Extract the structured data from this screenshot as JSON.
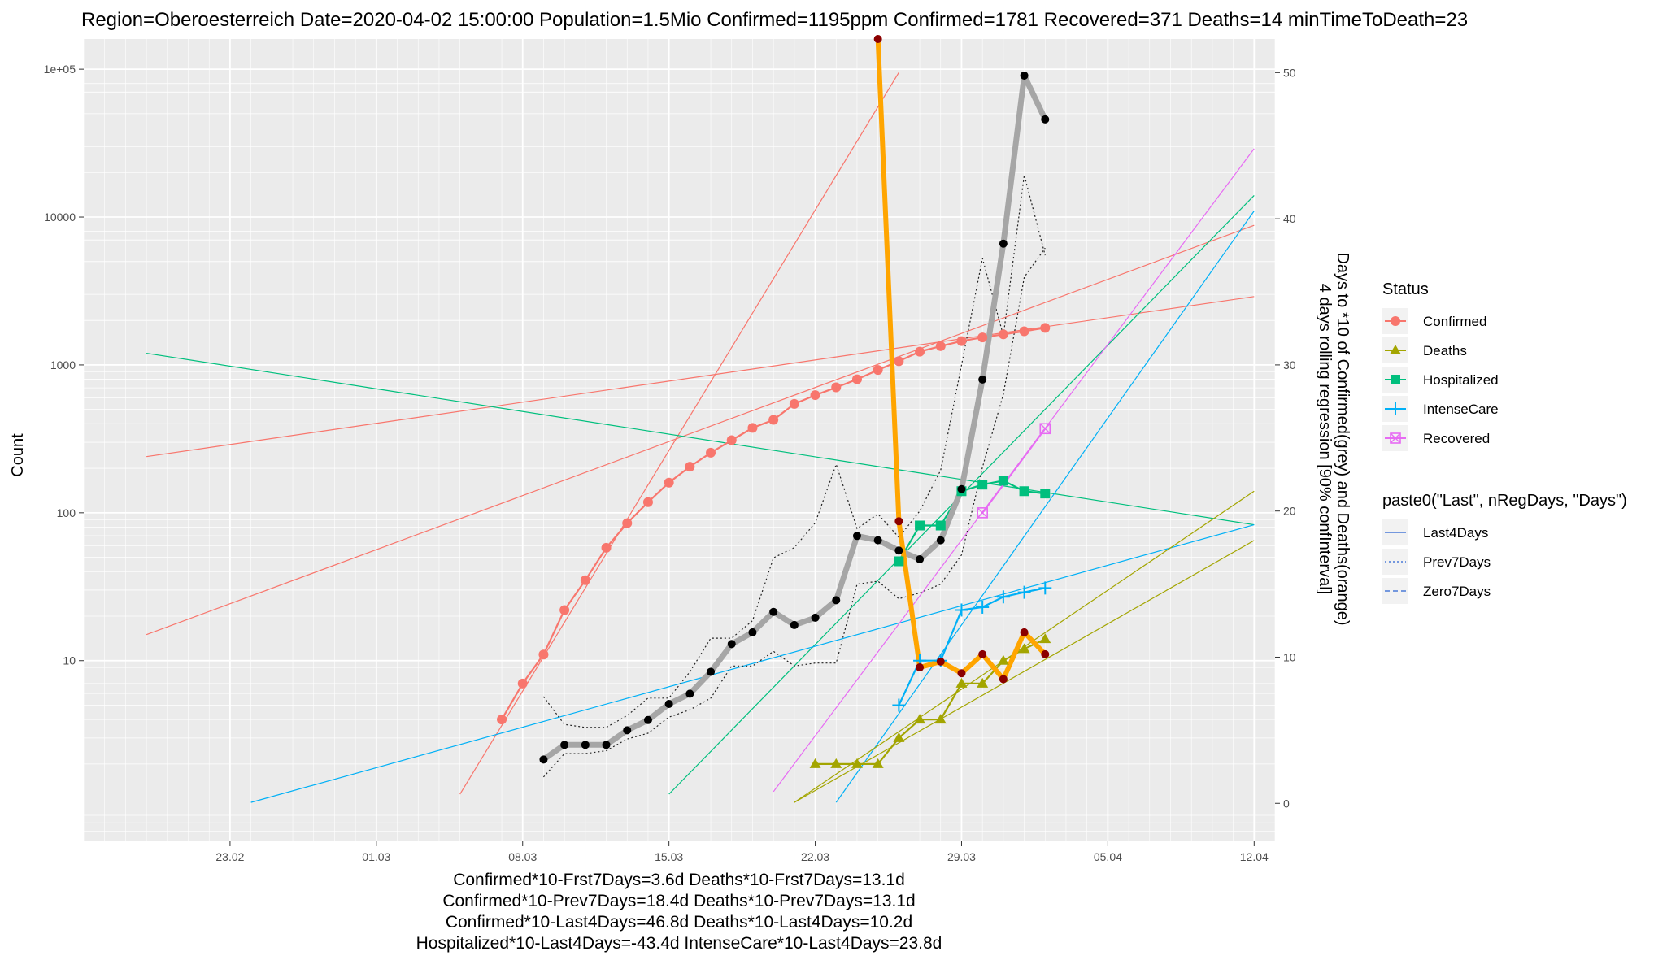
{
  "title": "Region=Oberoesterreich Date=2020-04-02 15:00:00  Population=1.5Mio Confirmed=1195ppm  Confirmed=1781  Recovered=371 Deaths=14  minTimeToDeath=23",
  "chart_data": {
    "type": "line",
    "ylabel_left": "Count",
    "ylabel_right_line1": "Days to *10 of Confirmed(grey) and Deaths(orange)",
    "ylabel_right_line2": "4 days rolling regression [90% confInterval]",
    "y_left_scale": "log10",
    "ylim_left": [
      0.6,
      160000
    ],
    "ylim_right": [
      -2.6,
      52.3
    ],
    "xlim": [
      "2020-02-16",
      "2020-04-13"
    ],
    "x_ticks": [
      {
        "date": "2020-02-23",
        "label": "23.02"
      },
      {
        "date": "2020-03-01",
        "label": "01.03"
      },
      {
        "date": "2020-03-08",
        "label": "08.03"
      },
      {
        "date": "2020-03-15",
        "label": "15.03"
      },
      {
        "date": "2020-03-22",
        "label": "22.03"
      },
      {
        "date": "2020-03-29",
        "label": "29.03"
      },
      {
        "date": "2020-04-05",
        "label": "05.04"
      },
      {
        "date": "2020-04-12",
        "label": "12.04"
      }
    ],
    "y_left_ticks": [
      {
        "value": 10,
        "label": "10"
      },
      {
        "value": 100,
        "label": "100"
      },
      {
        "value": 1000,
        "label": "1000"
      },
      {
        "value": 10000,
        "label": "10000"
      },
      {
        "value": 100000,
        "label": "1e+05"
      }
    ],
    "y_right_ticks": [
      0,
      10,
      20,
      30,
      40,
      50
    ],
    "grid": true,
    "legend_position": "right",
    "colors": {
      "Confirmed": "#F8766D",
      "Deaths": "#A3A500",
      "Hospitalized": "#00BF7D",
      "IntenseCare": "#00B0F6",
      "Recovered": "#E76BF3",
      "grey_line": "#a6a6a6",
      "orange_line": "#FFA500",
      "panel": "#EBEBEB"
    },
    "legend": {
      "status_title": "Status",
      "status_items": [
        {
          "name": "Confirmed",
          "shape": "circle"
        },
        {
          "name": "Deaths",
          "shape": "triangle"
        },
        {
          "name": "Hospitalized",
          "shape": "square"
        },
        {
          "name": "IntenseCare",
          "shape": "plus"
        },
        {
          "name": "Recovered",
          "shape": "boxcross"
        }
      ],
      "reg_title": "paste0(\"Last\", nRegDays, \"Days\")",
      "reg_items": [
        {
          "name": "Last4Days",
          "dash": "solid"
        },
        {
          "name": "Prev7Days",
          "dash": "dotted"
        },
        {
          "name": "Zero7Days",
          "dash": "dashed"
        }
      ]
    },
    "series": [
      {
        "name": "Confirmed",
        "points": [
          [
            "2020-03-07",
            4
          ],
          [
            "2020-03-08",
            7
          ],
          [
            "2020-03-09",
            11
          ],
          [
            "2020-03-10",
            22
          ],
          [
            "2020-03-11",
            35
          ],
          [
            "2020-03-12",
            58
          ],
          [
            "2020-03-13",
            85
          ],
          [
            "2020-03-14",
            118
          ],
          [
            "2020-03-15",
            160
          ],
          [
            "2020-03-16",
            205
          ],
          [
            "2020-03-17",
            255
          ],
          [
            "2020-03-18",
            310
          ],
          [
            "2020-03-19",
            375
          ],
          [
            "2020-03-20",
            425
          ],
          [
            "2020-03-21",
            545
          ],
          [
            "2020-03-22",
            625
          ],
          [
            "2020-03-23",
            705
          ],
          [
            "2020-03-24",
            800
          ],
          [
            "2020-03-25",
            925
          ],
          [
            "2020-03-26",
            1060
          ],
          [
            "2020-03-27",
            1230
          ],
          [
            "2020-03-28",
            1340
          ],
          [
            "2020-03-29",
            1450
          ],
          [
            "2020-03-30",
            1535
          ],
          [
            "2020-03-31",
            1610
          ],
          [
            "2020-04-01",
            1690
          ],
          [
            "2020-04-02",
            1781
          ]
        ]
      },
      {
        "name": "Deaths",
        "points": [
          [
            "2020-03-22",
            2
          ],
          [
            "2020-03-23",
            2
          ],
          [
            "2020-03-24",
            2
          ],
          [
            "2020-03-25",
            2
          ],
          [
            "2020-03-26",
            3
          ],
          [
            "2020-03-27",
            4
          ],
          [
            "2020-03-28",
            4
          ],
          [
            "2020-03-29",
            7
          ],
          [
            "2020-03-30",
            7
          ],
          [
            "2020-03-31",
            10
          ],
          [
            "2020-04-01",
            12
          ],
          [
            "2020-04-02",
            14
          ]
        ]
      },
      {
        "name": "Hospitalized",
        "points": [
          [
            "2020-03-26",
            47
          ],
          [
            "2020-03-27",
            82
          ],
          [
            "2020-03-28",
            82
          ],
          [
            "2020-03-29",
            140
          ],
          [
            "2020-03-30",
            155
          ],
          [
            "2020-03-31",
            165
          ],
          [
            "2020-04-01",
            140
          ],
          [
            "2020-04-02",
            135
          ]
        ]
      },
      {
        "name": "IntenseCare",
        "points": [
          [
            "2020-03-26",
            5
          ],
          [
            "2020-03-27",
            10
          ],
          [
            "2020-03-28",
            10
          ],
          [
            "2020-03-29",
            22
          ],
          [
            "2020-03-30",
            23
          ],
          [
            "2020-03-31",
            27
          ],
          [
            "2020-04-01",
            29
          ],
          [
            "2020-04-02",
            31
          ]
        ]
      },
      {
        "name": "Recovered",
        "points": [
          [
            "2020-03-30",
            100
          ],
          [
            "2020-04-02",
            371
          ]
        ]
      },
      {
        "name": "Confirmed days to x10 (grey)",
        "axis": "right",
        "points": [
          [
            "2020-03-09",
            3
          ],
          [
            "2020-03-10",
            4
          ],
          [
            "2020-03-11",
            4
          ],
          [
            "2020-03-12",
            4
          ],
          [
            "2020-03-13",
            5
          ],
          [
            "2020-03-14",
            5.7
          ],
          [
            "2020-03-15",
            6.8
          ],
          [
            "2020-03-16",
            7.5
          ],
          [
            "2020-03-17",
            9
          ],
          [
            "2020-03-18",
            10.9
          ],
          [
            "2020-03-19",
            11.7
          ],
          [
            "2020-03-20",
            13.1
          ],
          [
            "2020-03-21",
            12.2
          ],
          [
            "2020-03-22",
            12.7
          ],
          [
            "2020-03-23",
            13.9
          ],
          [
            "2020-03-24",
            18.3
          ],
          [
            "2020-03-25",
            18
          ],
          [
            "2020-03-26",
            17.3
          ],
          [
            "2020-03-27",
            16.7
          ],
          [
            "2020-03-28",
            18
          ],
          [
            "2020-03-29",
            21.5
          ],
          [
            "2020-03-30",
            29
          ],
          [
            "2020-03-31",
            38.3
          ],
          [
            "2020-04-01",
            49.8
          ],
          [
            "2020-04-02",
            46.8
          ]
        ]
      },
      {
        "name": "Confirmed confidence band upper",
        "axis": "right",
        "points": [
          [
            "2020-03-09",
            7.3
          ],
          [
            "2020-03-10",
            5.4
          ],
          [
            "2020-03-11",
            5.2
          ],
          [
            "2020-03-12",
            5.2
          ],
          [
            "2020-03-13",
            6.0
          ],
          [
            "2020-03-14",
            7.2
          ],
          [
            "2020-03-15",
            7.2
          ],
          [
            "2020-03-16",
            9.0
          ],
          [
            "2020-03-17",
            11.3
          ],
          [
            "2020-03-18",
            11.3
          ],
          [
            "2020-03-19",
            12.5
          ],
          [
            "2020-03-20",
            16.8
          ],
          [
            "2020-03-21",
            17.5
          ],
          [
            "2020-03-22",
            19.2
          ],
          [
            "2020-03-23",
            23.2
          ],
          [
            "2020-03-24",
            18.8
          ],
          [
            "2020-03-25",
            19.8
          ],
          [
            "2020-03-26",
            18.2
          ],
          [
            "2020-03-27",
            20.0
          ],
          [
            "2020-03-28",
            22.8
          ],
          [
            "2020-03-29",
            30.0
          ],
          [
            "2020-03-30",
            37.3
          ],
          [
            "2020-03-31",
            32.0
          ],
          [
            "2020-04-01",
            43.0
          ],
          [
            "2020-04-02",
            37.5
          ]
        ]
      },
      {
        "name": "Confirmed confidence band lower",
        "axis": "right",
        "points": [
          [
            "2020-03-09",
            1.8
          ],
          [
            "2020-03-10",
            3.4
          ],
          [
            "2020-03-11",
            3.4
          ],
          [
            "2020-03-12",
            3.6
          ],
          [
            "2020-03-13",
            4.4
          ],
          [
            "2020-03-14",
            4.8
          ],
          [
            "2020-03-15",
            5.9
          ],
          [
            "2020-03-16",
            6.4
          ],
          [
            "2020-03-17",
            7.2
          ],
          [
            "2020-03-18",
            9.4
          ],
          [
            "2020-03-19",
            9.4
          ],
          [
            "2020-03-20",
            10.4
          ],
          [
            "2020-03-21",
            9.4
          ],
          [
            "2020-03-22",
            9.6
          ],
          [
            "2020-03-23",
            9.6
          ],
          [
            "2020-03-24",
            15.0
          ],
          [
            "2020-03-25",
            15.2
          ],
          [
            "2020-03-26",
            14.0
          ],
          [
            "2020-03-27",
            14.4
          ],
          [
            "2020-03-28",
            15.0
          ],
          [
            "2020-03-29",
            17.0
          ],
          [
            "2020-03-30",
            23.0
          ],
          [
            "2020-03-31",
            28.0
          ],
          [
            "2020-04-01",
            36.0
          ],
          [
            "2020-04-02",
            38.0
          ]
        ]
      },
      {
        "name": "Deaths days to x10 (orange)",
        "axis": "right",
        "points": [
          [
            "2020-03-25",
            52.3
          ],
          [
            "2020-03-26",
            19.3
          ],
          [
            "2020-03-27",
            9.3
          ],
          [
            "2020-03-28",
            9.7
          ],
          [
            "2020-03-29",
            8.9
          ],
          [
            "2020-03-30",
            10.2
          ],
          [
            "2020-03-31",
            8.5
          ],
          [
            "2020-04-01",
            11.7
          ],
          [
            "2020-04-02",
            10.2
          ]
        ]
      }
    ],
    "regression_lines": [
      {
        "status": "Confirmed",
        "type": "Last4Days",
        "from": [
          "2020-02-19",
          240
        ],
        "to": [
          "2020-04-12",
          2900
        ]
      },
      {
        "status": "Confirmed",
        "type": "Prev7Days",
        "from": [
          "2020-02-19",
          15
        ],
        "to": [
          "2020-04-12",
          8800
        ]
      },
      {
        "status": "Confirmed",
        "type": "Zero7Days",
        "from": [
          "2020-03-05",
          1.25
        ],
        "to": [
          "2020-03-26",
          95000
        ]
      },
      {
        "status": "Hospitalized",
        "type": "Last4Days",
        "from": [
          "2020-02-19",
          1200
        ],
        "to": [
          "2020-04-12",
          83
        ]
      },
      {
        "status": "Hospitalized",
        "type": "Prev7Days",
        "from": [
          "2020-03-15",
          1.25
        ],
        "to": [
          "2020-04-12",
          14000
        ]
      },
      {
        "status": "IntenseCare",
        "type": "Last4Days",
        "from": [
          "2020-02-24",
          1.1
        ],
        "to": [
          "2020-04-12",
          83
        ]
      },
      {
        "status": "IntenseCare",
        "type": "Prev7Days",
        "from": [
          "2020-03-23",
          1.1
        ],
        "to": [
          "2020-04-12",
          11000
        ]
      },
      {
        "status": "Deaths",
        "type": "Last4Days",
        "from": [
          "2020-03-21",
          1.1
        ],
        "to": [
          "2020-04-12",
          140
        ]
      },
      {
        "status": "Deaths",
        "type": "Prev7Days",
        "from": [
          "2020-03-21",
          1.1
        ],
        "to": [
          "2020-04-12",
          65
        ]
      },
      {
        "status": "Recovered",
        "type": "Last4Days",
        "from": [
          "2020-03-20",
          1.3
        ],
        "to": [
          "2020-04-12",
          29000
        ]
      }
    ],
    "captions": [
      "Confirmed*10-Frst7Days=3.6d  Deaths*10-Frst7Days=13.1d",
      "Confirmed*10-Prev7Days=18.4d  Deaths*10-Prev7Days=13.1d",
      "Confirmed*10-Last4Days=46.8d  Deaths*10-Last4Days=10.2d",
      "Hospitalized*10-Last4Days=-43.4d  IntenseCare*10-Last4Days=23.8d"
    ]
  }
}
